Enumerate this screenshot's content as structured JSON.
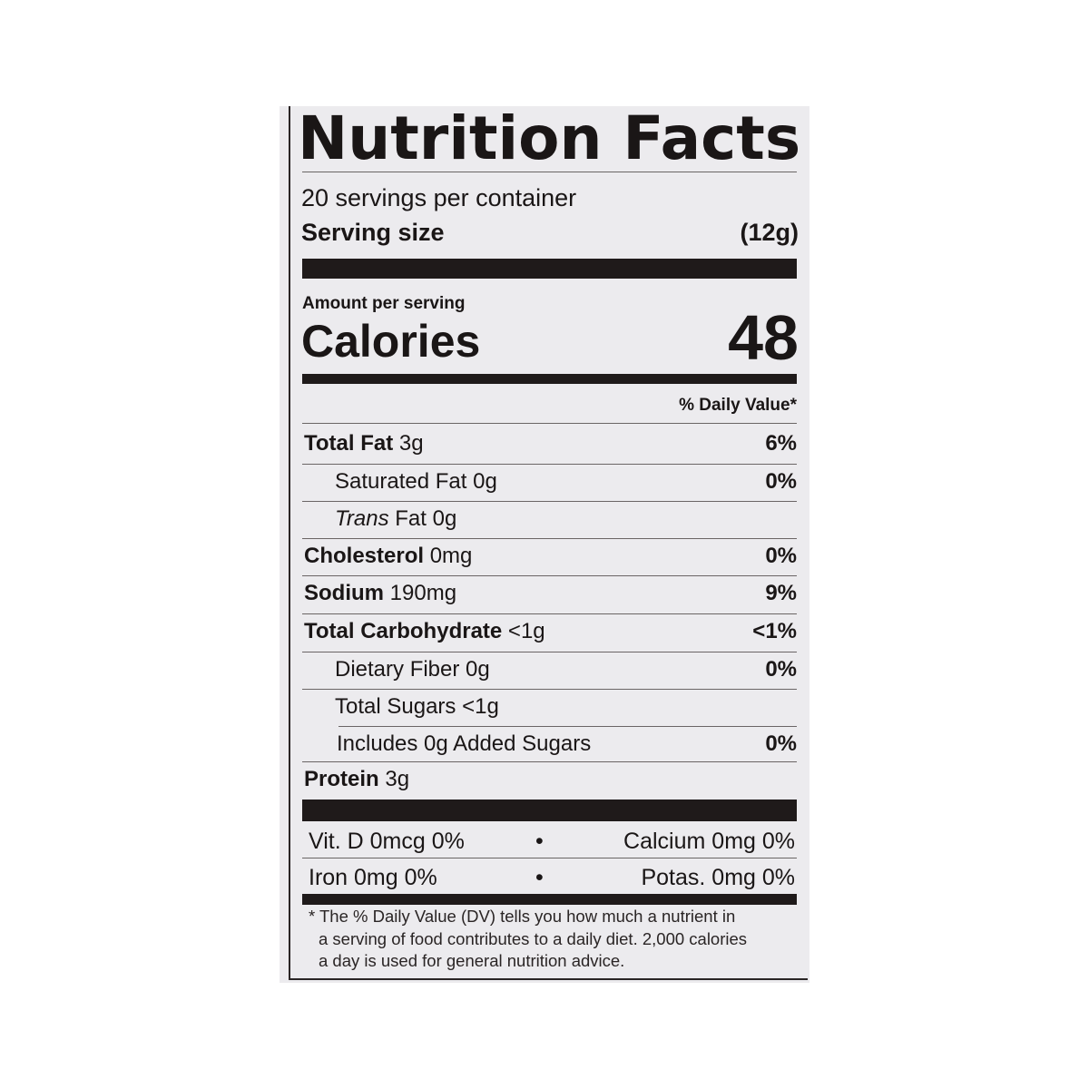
{
  "label": {
    "title": "Nutrition Facts",
    "servings_per_container": "20 servings per container",
    "serving_size_label": "Serving size",
    "serving_size_value": "(12g)",
    "amount_per_serving": "Amount per serving",
    "calories_label": "Calories",
    "calories_value": "48",
    "daily_value_header": "% Daily Value*",
    "nutrients": [
      {
        "name": "Total Fat",
        "amount": "3g",
        "dv": "6%",
        "bold": true,
        "indent": 0
      },
      {
        "name": "Saturated Fat",
        "amount": "0g",
        "dv": "0%",
        "bold": false,
        "indent": 1
      },
      {
        "name": "Trans",
        "name_suffix": "Fat",
        "amount": "0g",
        "dv": "",
        "bold": false,
        "indent": 1,
        "italic": true
      },
      {
        "name": "Cholesterol",
        "amount": "0mg",
        "dv": "0%",
        "bold": true,
        "indent": 0
      },
      {
        "name": "Sodium",
        "amount": "190mg",
        "dv": "9%",
        "bold": true,
        "indent": 0
      },
      {
        "name": "Total Carbohydrate",
        "amount": "<1g",
        "dv": "<1%",
        "bold": true,
        "indent": 0
      },
      {
        "name": "Dietary Fiber",
        "amount": "0g",
        "dv": "0%",
        "bold": false,
        "indent": 1
      },
      {
        "name": "Total Sugars",
        "amount": "<1g",
        "dv": "",
        "bold": false,
        "indent": 1
      },
      {
        "name": "Includes 0g Added Sugars",
        "amount": "",
        "dv": "0%",
        "bold": false,
        "indent": 2
      },
      {
        "name": "Protein",
        "amount": "3g",
        "dv": "",
        "bold": true,
        "indent": 0
      }
    ],
    "vitamins": [
      {
        "left": "Vit. D 0mcg 0%",
        "right": "Calcium 0mg 0%"
      },
      {
        "left": "Iron 0mg 0%",
        "right": "Potas. 0mg 0%"
      }
    ],
    "separator": "•",
    "footnote": [
      "* The % Daily Value (DV) tells you how much a nutrient in",
      "a serving of food contributes to a daily diet. 2,000 calories",
      "a day is used for general nutrition advice."
    ]
  }
}
